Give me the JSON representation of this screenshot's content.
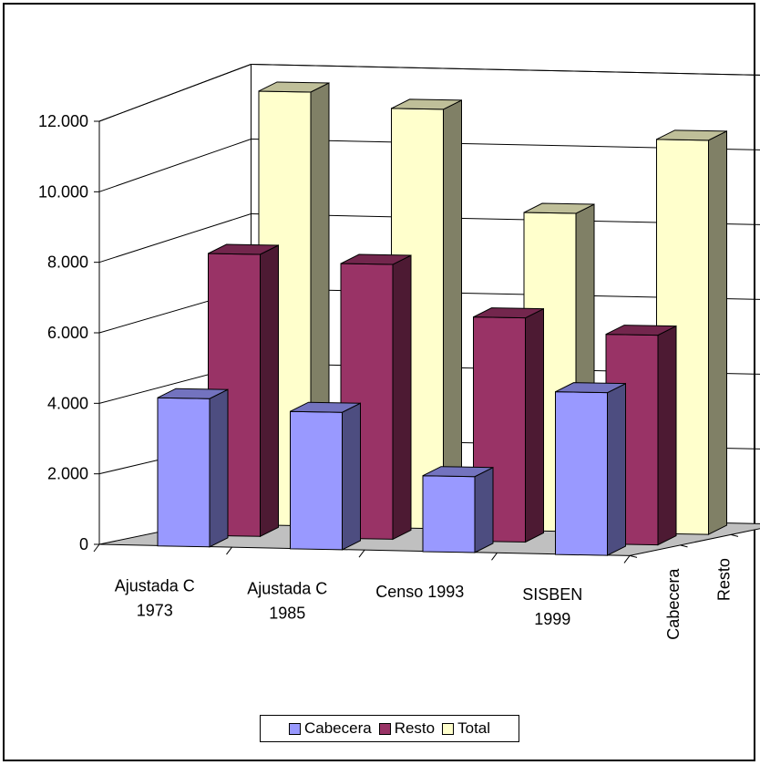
{
  "chart_data": {
    "type": "bar",
    "subtype": "3d-clustered",
    "categories": [
      [
        "Ajustada C",
        "1973"
      ],
      [
        "Ajustada C",
        "1985"
      ],
      [
        "Censo 1993"
      ],
      [
        "SISBEN",
        "1999"
      ]
    ],
    "series": [
      {
        "name": "Cabecera",
        "values": [
          4100,
          3800,
          2100,
          4500
        ],
        "color": "#9999ff"
      },
      {
        "name": "Resto",
        "values": [
          7800,
          7600,
          6200,
          5800
        ],
        "color": "#993366"
      },
      {
        "name": "Total",
        "values": [
          12000,
          11600,
          8800,
          10900
        ],
        "color": "#ffffcc"
      }
    ],
    "ylim": [
      0,
      12000
    ],
    "yticks": [
      "0",
      "2.000",
      "4.000",
      "6.000",
      "8.000",
      "10.000",
      "12.000"
    ],
    "grid": true,
    "legend_position": "bottom"
  }
}
